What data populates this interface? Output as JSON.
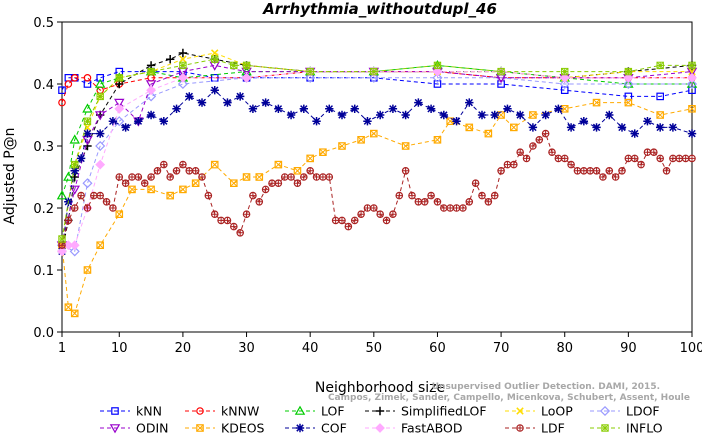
{
  "chart_data": {
    "type": "line",
    "title": "Arrhythmia_withoutdupl_46",
    "xlabel": "Neighborhood size",
    "ylabel": "Adjusted P@n",
    "xlim": [
      1,
      100
    ],
    "ylim": [
      0.0,
      0.5
    ],
    "xticks": [
      "1",
      "10",
      "20",
      "30",
      "40",
      "50",
      "60",
      "70",
      "80",
      "90",
      "100"
    ],
    "yticks": [
      "0.0",
      "0.1",
      "0.2",
      "0.3",
      "0.4",
      "0.5"
    ],
    "watermark": [
      "Campos, Zimek, Sander, Campello, Micenkova, Schubert, Assent, Houle",
      "Unsupervised Outlier Detection. DAMI, 2015."
    ],
    "legend_position": "bottom",
    "series": [
      {
        "name": "kNN",
        "color": "#0000ff",
        "marker": "square",
        "dash": "4,3",
        "x": [
          1,
          2,
          3,
          5,
          7,
          10,
          15,
          20,
          25,
          30,
          40,
          50,
          60,
          70,
          80,
          90,
          95,
          100
        ],
        "y": [
          0.39,
          0.41,
          0.41,
          0.4,
          0.41,
          0.42,
          0.42,
          0.42,
          0.41,
          0.41,
          0.41,
          0.41,
          0.4,
          0.4,
          0.39,
          0.38,
          0.38,
          0.39
        ]
      },
      {
        "name": "kNNW",
        "color": "#ff0000",
        "marker": "circle",
        "dash": "4,3",
        "x": [
          1,
          2,
          3,
          5,
          7,
          10,
          15,
          20,
          30,
          40,
          50,
          60,
          70,
          80,
          90,
          100
        ],
        "y": [
          0.37,
          0.4,
          0.41,
          0.41,
          0.39,
          0.4,
          0.41,
          0.41,
          0.41,
          0.42,
          0.42,
          0.42,
          0.41,
          0.41,
          0.41,
          0.41
        ]
      },
      {
        "name": "LOF",
        "color": "#00cc00",
        "marker": "triangle",
        "dash": "4,3",
        "x": [
          1,
          2,
          3,
          5,
          7,
          10,
          15,
          20,
          30,
          40,
          50,
          60,
          70,
          80,
          90,
          100
        ],
        "y": [
          0.22,
          0.25,
          0.31,
          0.36,
          0.4,
          0.41,
          0.42,
          0.41,
          0.42,
          0.42,
          0.42,
          0.43,
          0.42,
          0.41,
          0.4,
          0.4
        ]
      },
      {
        "name": "SimplifiedLOF",
        "color": "#000000",
        "marker": "plus",
        "dash": "4,3",
        "x": [
          1,
          2,
          3,
          5,
          7,
          10,
          15,
          18,
          20,
          25,
          30,
          40,
          50,
          60,
          70,
          80,
          90,
          100
        ],
        "y": [
          0.13,
          0.18,
          0.25,
          0.3,
          0.35,
          0.4,
          0.43,
          0.44,
          0.45,
          0.44,
          0.43,
          0.42,
          0.42,
          0.42,
          0.42,
          0.41,
          0.42,
          0.43
        ]
      },
      {
        "name": "LoOP",
        "color": "#ffdd00",
        "marker": "x",
        "dash": "4,3",
        "x": [
          1,
          3,
          5,
          7,
          10,
          15,
          20,
          25,
          30,
          40,
          50,
          60,
          70,
          80,
          90,
          100
        ],
        "y": [
          0.14,
          0.27,
          0.33,
          0.38,
          0.41,
          0.42,
          0.44,
          0.45,
          0.43,
          0.42,
          0.42,
          0.42,
          0.42,
          0.41,
          0.42,
          0.42
        ]
      },
      {
        "name": "LDOF",
        "color": "#9999ff",
        "marker": "diamond",
        "dash": "4,3",
        "x": [
          1,
          3,
          5,
          7,
          10,
          15,
          20,
          30,
          40,
          50,
          60,
          70,
          80,
          90,
          100
        ],
        "y": [
          0.14,
          0.13,
          0.24,
          0.3,
          0.34,
          0.38,
          0.4,
          0.41,
          0.41,
          0.41,
          0.41,
          0.41,
          0.4,
          0.4,
          0.4
        ]
      },
      {
        "name": "ODIN",
        "color": "#9900cc",
        "marker": "triangle-down",
        "dash": "4,3",
        "x": [
          1,
          3,
          5,
          7,
          10,
          13,
          15,
          20,
          25,
          30,
          40,
          50,
          60,
          70,
          80,
          90,
          100
        ],
        "y": [
          0.14,
          0.23,
          0.31,
          0.35,
          0.37,
          0.34,
          0.4,
          0.42,
          0.43,
          0.42,
          0.42,
          0.42,
          0.42,
          0.41,
          0.41,
          0.41,
          0.42
        ]
      },
      {
        "name": "KDEOS",
        "color": "#ffaa00",
        "marker": "square-x",
        "dash": "4,3",
        "x": [
          1,
          2,
          3,
          5,
          7,
          10,
          12,
          15,
          18,
          20,
          22,
          25,
          28,
          30,
          32,
          35,
          38,
          40,
          42,
          45,
          48,
          50,
          55,
          60,
          62,
          65,
          68,
          70,
          72,
          75,
          80,
          85,
          90,
          95,
          100
        ],
        "y": [
          0.14,
          0.04,
          0.03,
          0.1,
          0.14,
          0.19,
          0.23,
          0.23,
          0.22,
          0.23,
          0.24,
          0.27,
          0.24,
          0.25,
          0.25,
          0.27,
          0.26,
          0.28,
          0.29,
          0.3,
          0.31,
          0.32,
          0.3,
          0.31,
          0.34,
          0.33,
          0.32,
          0.35,
          0.33,
          0.35,
          0.36,
          0.37,
          0.37,
          0.35,
          0.36
        ]
      },
      {
        "name": "COF",
        "color": "#000099",
        "marker": "asterisk",
        "dash": "4,3",
        "x": [
          1,
          2,
          3,
          4,
          5,
          7,
          9,
          11,
          13,
          15,
          17,
          19,
          21,
          23,
          25,
          27,
          29,
          31,
          33,
          35,
          37,
          39,
          41,
          43,
          45,
          47,
          49,
          51,
          53,
          55,
          57,
          59,
          61,
          63,
          65,
          67,
          69,
          71,
          73,
          75,
          77,
          79,
          81,
          83,
          85,
          87,
          89,
          91,
          93,
          95,
          97,
          100
        ],
        "y": [
          0.13,
          0.21,
          0.26,
          0.28,
          0.32,
          0.32,
          0.34,
          0.33,
          0.34,
          0.35,
          0.34,
          0.36,
          0.38,
          0.37,
          0.39,
          0.37,
          0.38,
          0.36,
          0.37,
          0.36,
          0.35,
          0.36,
          0.34,
          0.36,
          0.35,
          0.36,
          0.34,
          0.35,
          0.36,
          0.35,
          0.37,
          0.36,
          0.35,
          0.34,
          0.37,
          0.35,
          0.35,
          0.36,
          0.35,
          0.33,
          0.35,
          0.36,
          0.33,
          0.34,
          0.33,
          0.35,
          0.33,
          0.32,
          0.34,
          0.33,
          0.33,
          0.32
        ]
      },
      {
        "name": "FastABOD",
        "color": "#ffaaff",
        "marker": "diamond-filled",
        "dash": "4,3",
        "x": [
          1,
          2,
          3,
          5,
          7,
          10,
          15,
          20,
          30,
          40,
          50,
          60,
          70,
          80,
          90,
          100
        ],
        "y": [
          0.13,
          0.14,
          0.14,
          0.2,
          0.27,
          0.36,
          0.39,
          0.41,
          0.41,
          0.42,
          0.42,
          0.42,
          0.42,
          0.41,
          0.41,
          0.41
        ]
      },
      {
        "name": "LDF",
        "color": "#aa2222",
        "marker": "circle-plus",
        "dash": "4,3",
        "x": [
          1,
          2,
          3,
          4,
          5,
          6,
          7,
          8,
          9,
          10,
          11,
          12,
          13,
          14,
          15,
          16,
          17,
          18,
          19,
          20,
          21,
          22,
          23,
          24,
          25,
          26,
          27,
          28,
          29,
          30,
          31,
          32,
          33,
          34,
          35,
          36,
          37,
          38,
          39,
          40,
          41,
          42,
          43,
          44,
          45,
          46,
          47,
          48,
          49,
          50,
          51,
          52,
          53,
          54,
          55,
          56,
          57,
          58,
          59,
          60,
          61,
          62,
          63,
          64,
          65,
          66,
          67,
          68,
          69,
          70,
          71,
          72,
          73,
          74,
          75,
          76,
          77,
          78,
          79,
          80,
          81,
          82,
          83,
          84,
          85,
          86,
          87,
          88,
          89,
          90,
          91,
          92,
          93,
          94,
          95,
          96,
          97,
          98,
          99,
          100
        ],
        "y": [
          0.14,
          0.18,
          0.2,
          0.22,
          0.2,
          0.22,
          0.22,
          0.21,
          0.2,
          0.25,
          0.24,
          0.25,
          0.25,
          0.24,
          0.25,
          0.26,
          0.27,
          0.25,
          0.26,
          0.27,
          0.26,
          0.26,
          0.25,
          0.22,
          0.19,
          0.18,
          0.18,
          0.17,
          0.16,
          0.19,
          0.22,
          0.21,
          0.23,
          0.24,
          0.24,
          0.25,
          0.25,
          0.24,
          0.25,
          0.26,
          0.25,
          0.25,
          0.25,
          0.18,
          0.18,
          0.17,
          0.18,
          0.19,
          0.2,
          0.2,
          0.19,
          0.18,
          0.19,
          0.22,
          0.26,
          0.22,
          0.21,
          0.21,
          0.22,
          0.21,
          0.2,
          0.2,
          0.2,
          0.2,
          0.21,
          0.24,
          0.22,
          0.21,
          0.22,
          0.26,
          0.27,
          0.27,
          0.29,
          0.28,
          0.3,
          0.31,
          0.32,
          0.29,
          0.28,
          0.28,
          0.27,
          0.26,
          0.26,
          0.26,
          0.26,
          0.25,
          0.26,
          0.25,
          0.26,
          0.28,
          0.28,
          0.27,
          0.29,
          0.29,
          0.28,
          0.26,
          0.28,
          0.28,
          0.28,
          0.28
        ]
      },
      {
        "name": "INFLO",
        "color": "#88cc00",
        "marker": "star",
        "dash": "4,3",
        "x": [
          1,
          3,
          5,
          7,
          10,
          15,
          20,
          25,
          28,
          30,
          40,
          50,
          60,
          70,
          80,
          90,
          95,
          100
        ],
        "y": [
          0.15,
          0.27,
          0.34,
          0.38,
          0.41,
          0.42,
          0.43,
          0.44,
          0.43,
          0.43,
          0.42,
          0.42,
          0.43,
          0.42,
          0.42,
          0.42,
          0.43,
          0.43
        ]
      }
    ]
  }
}
